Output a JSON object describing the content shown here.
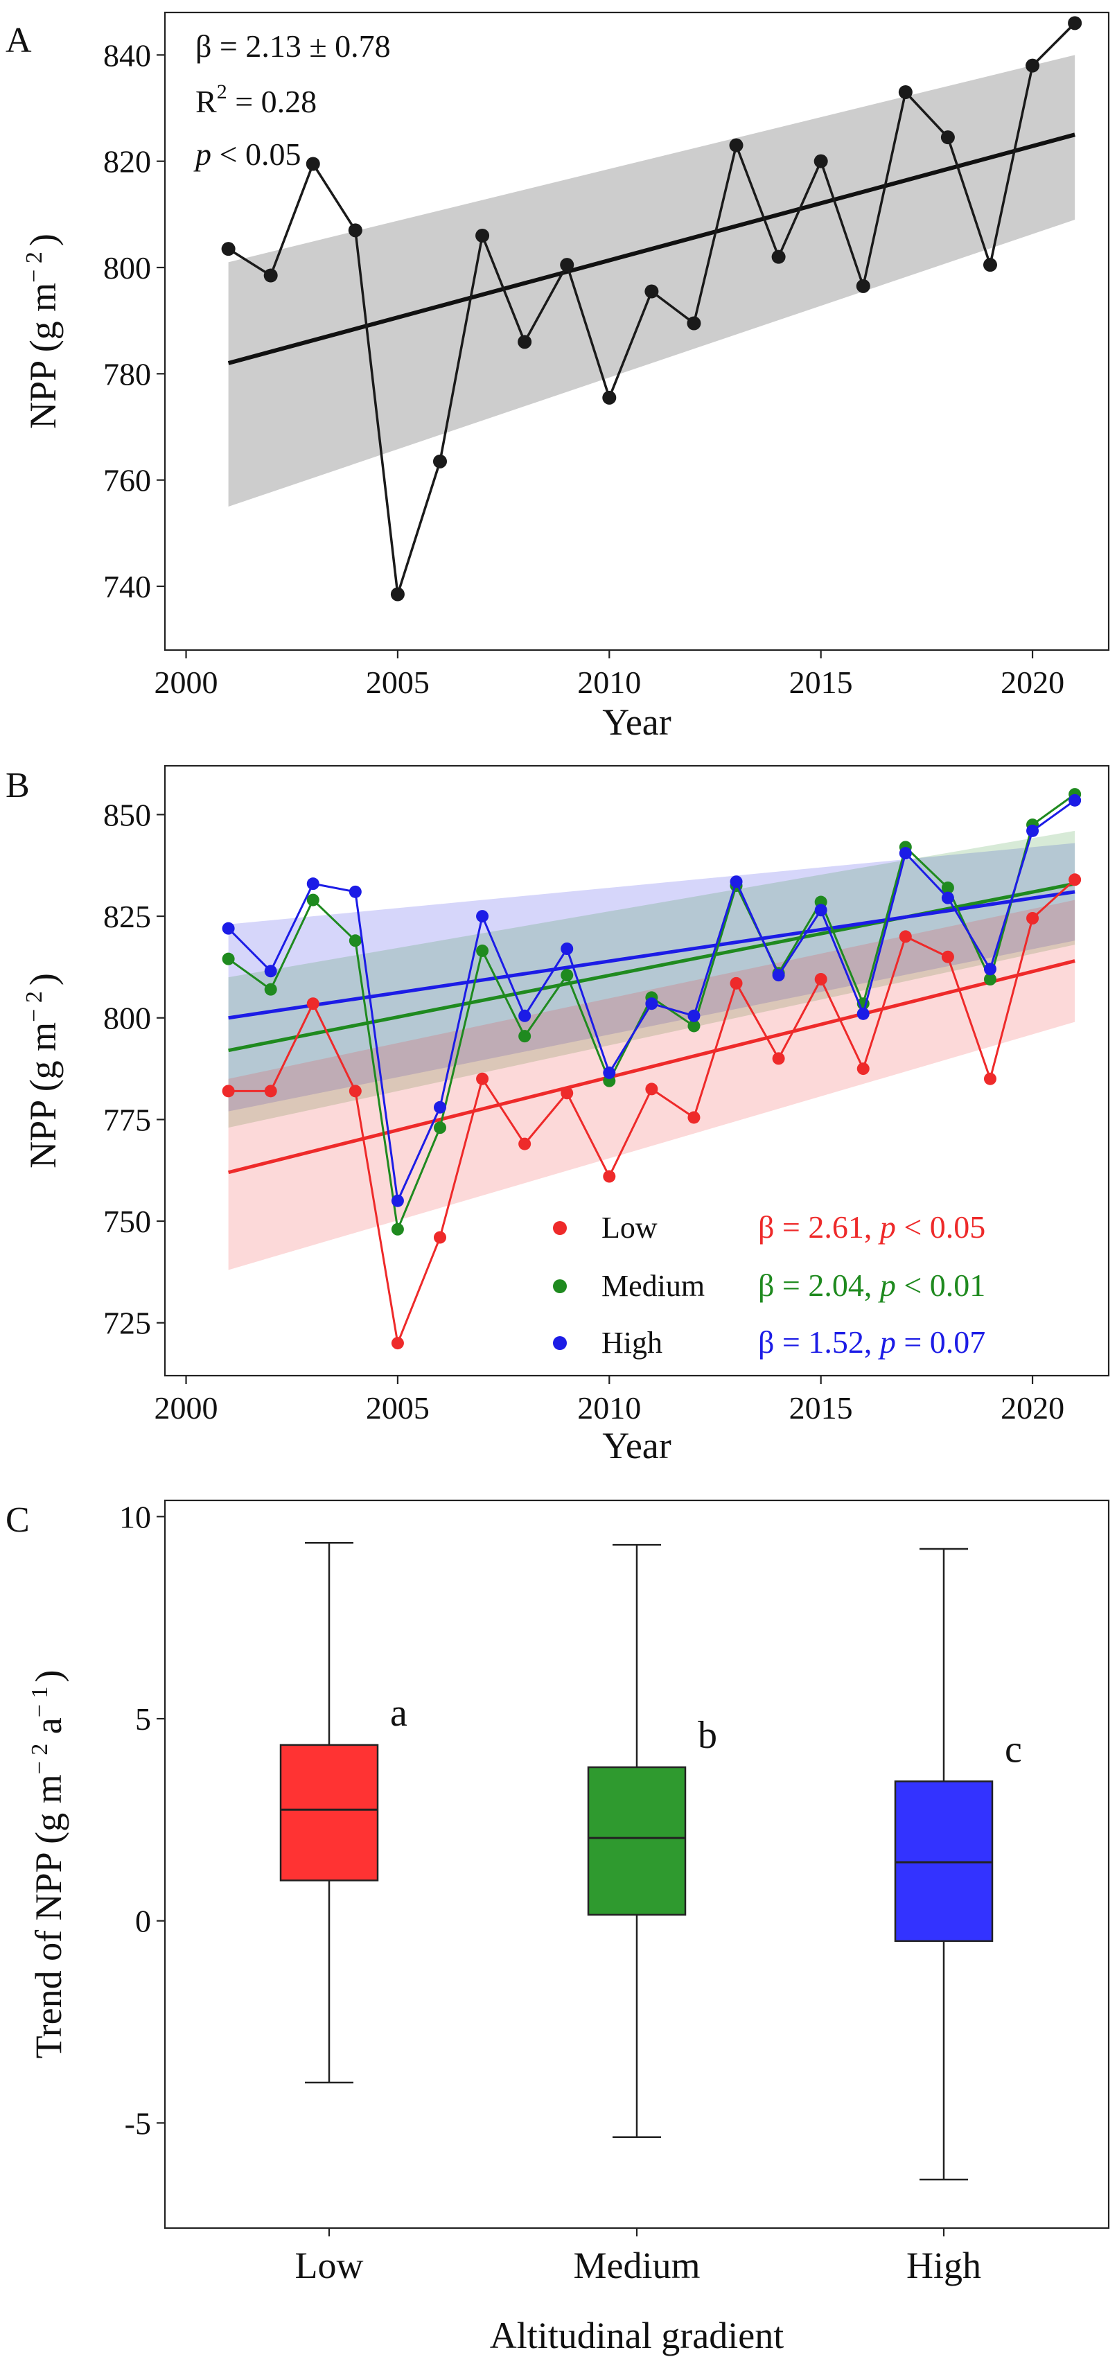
{
  "chart_data": [
    {
      "panel": "A",
      "type": "line",
      "xlabel": "Year",
      "ylabel": "NPP (g m⁻²)",
      "ylabel_parts": {
        "main": "NPP (g m",
        "sup": "− 2",
        "close": ")"
      },
      "xlim": [
        1999.5,
        2021.8
      ],
      "ylim": [
        728,
        848
      ],
      "xticks": [
        2000,
        2005,
        2010,
        2015,
        2020
      ],
      "yticks": [
        740,
        760,
        780,
        800,
        820,
        840
      ],
      "annotations": {
        "beta": "β = 2.13 ± 0.78",
        "r2_main": "R",
        "r2_sup": "2",
        "r2_rest": " = 0.28",
        "p_italic": "p",
        "p_rest": " < 0.05"
      },
      "series": [
        {
          "name": "NPP",
          "color": "#1a1a1a",
          "x": [
            2001,
            2002,
            2003,
            2004,
            2005,
            2006,
            2007,
            2008,
            2009,
            2010,
            2011,
            2012,
            2013,
            2014,
            2015,
            2016,
            2017,
            2018,
            2019,
            2020,
            2021
          ],
          "y": [
            803.5,
            798.5,
            819.5,
            807,
            738.5,
            763.5,
            806,
            786,
            800.5,
            775.5,
            795.5,
            789.5,
            823,
            802,
            820,
            796.5,
            833,
            824.5,
            800.5,
            838,
            846
          ]
        }
      ],
      "trend": {
        "x0": 2001,
        "x1": 2021,
        "y0": 782,
        "y1": 825,
        "ci_upper": [
          801,
          840
        ],
        "ci_lower": [
          755,
          809
        ],
        "color": "#111111",
        "band_color": "#c8c8c8"
      }
    },
    {
      "panel": "B",
      "type": "line",
      "xlabel": "Year",
      "ylabel": "NPP (g m⁻²)",
      "ylabel_parts": {
        "main": "NPP (g m",
        "sup": "− 2",
        "close": ")"
      },
      "xlim": [
        1999.5,
        2021.8
      ],
      "ylim": [
        712,
        862
      ],
      "xticks": [
        2000,
        2005,
        2010,
        2015,
        2020
      ],
      "yticks": [
        725,
        750,
        775,
        800,
        825,
        850
      ],
      "series": [
        {
          "name": "Low",
          "color": "#ee2a2a",
          "stat_beta": "β = 2.61, ",
          "stat_p_italic": "p",
          "stat_p_rest": " < 0.05",
          "x": [
            2001,
            2002,
            2003,
            2004,
            2005,
            2006,
            2007,
            2008,
            2009,
            2010,
            2011,
            2012,
            2013,
            2014,
            2015,
            2016,
            2017,
            2018,
            2019,
            2020,
            2021
          ],
          "y": [
            782,
            782,
            803.5,
            782,
            720,
            746,
            785,
            769,
            781.5,
            761,
            782.5,
            775.5,
            808.5,
            790,
            809.5,
            787.5,
            820,
            815,
            785,
            824.5,
            834
          ],
          "trend": {
            "y0": 762,
            "y1": 814,
            "ci_upper": [
              785,
              829
            ],
            "ci_lower": [
              738,
              799
            ]
          }
        },
        {
          "name": "Medium",
          "color": "#1f8a1f",
          "stat_beta": "β = 2.04, ",
          "stat_p_italic": "p",
          "stat_p_rest": " < 0.01",
          "x": [
            2001,
            2002,
            2003,
            2004,
            2005,
            2006,
            2007,
            2008,
            2009,
            2010,
            2011,
            2012,
            2013,
            2014,
            2015,
            2016,
            2017,
            2018,
            2019,
            2020,
            2021
          ],
          "y": [
            814.5,
            807,
            829,
            819,
            748,
            773,
            816.5,
            795.5,
            810.5,
            784.5,
            805,
            798,
            832.5,
            811,
            828.5,
            803.5,
            842,
            832,
            809.5,
            847.5,
            855
          ],
          "trend": {
            "y0": 792,
            "y1": 833,
            "ci_upper": [
              810,
              846
            ],
            "ci_lower": [
              773,
              818
            ]
          }
        },
        {
          "name": "High",
          "color": "#1c1ce6",
          "stat_beta": "β = 1.52, ",
          "stat_p_italic": "p",
          "stat_p_rest": " = 0.07",
          "x": [
            2001,
            2002,
            2003,
            2004,
            2005,
            2006,
            2007,
            2008,
            2009,
            2010,
            2011,
            2012,
            2013,
            2014,
            2015,
            2016,
            2017,
            2018,
            2019,
            2020,
            2021
          ],
          "y": [
            822,
            811.5,
            833,
            831,
            755,
            778,
            825,
            800.5,
            817,
            786.5,
            803.5,
            800.5,
            833.5,
            810.5,
            826.5,
            801,
            840.5,
            829.5,
            812,
            846,
            853.5
          ],
          "trend": {
            "y0": 800,
            "y1": 831,
            "ci_upper": [
              823,
              843
            ],
            "ci_lower": [
              777,
              819
            ]
          }
        }
      ]
    },
    {
      "panel": "C",
      "type": "box",
      "xlabel": "Altitudinal gradient",
      "ylabel_parts": {
        "main": "Trend of NPP (g m",
        "sup1": "− 2",
        "mid": " a",
        "sup2": "− 1",
        "close": ")"
      },
      "ylim": [
        -7.6,
        10.4
      ],
      "yticks": [
        -5,
        0,
        5,
        10
      ],
      "categories": [
        "Low",
        "Medium",
        "High"
      ],
      "colors": [
        "#ff3333",
        "#2f9a2f",
        "#3333ff"
      ],
      "letters": [
        "a",
        "b",
        "c"
      ],
      "boxes": [
        {
          "whisker_low": -4.0,
          "q1": 1.0,
          "median": 2.75,
          "q3": 4.35,
          "whisker_high": 9.35
        },
        {
          "whisker_low": -5.35,
          "q1": 0.15,
          "median": 2.05,
          "q3": 3.8,
          "whisker_high": 9.3
        },
        {
          "whisker_low": -6.4,
          "q1": -0.5,
          "median": 1.45,
          "q3": 3.45,
          "whisker_high": 9.2
        }
      ]
    }
  ]
}
